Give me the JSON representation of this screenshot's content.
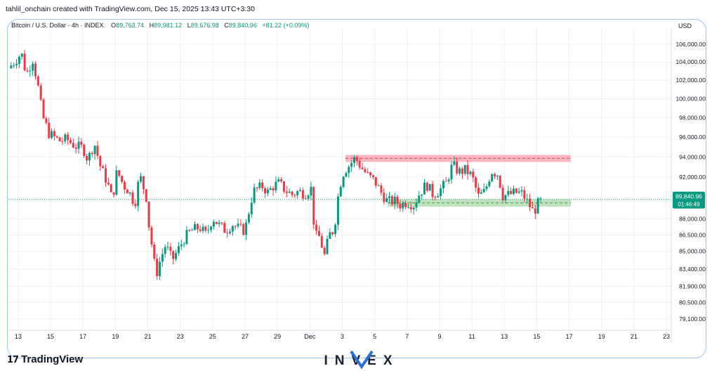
{
  "header": {
    "credit": "tahlil_onchain created with TradingView.com, Dec 15, 2025 13:43 UTC+3:30"
  },
  "legend": {
    "symbol": "Bitcoin / U.S. Dollar · 4h · INDEX",
    "open_label": "O",
    "open": "89,763.74",
    "high_label": "H",
    "high": "89,981.12",
    "low_label": "L",
    "low": "89,676.98",
    "close_label": "C",
    "close": "89,840.96",
    "change": "+81.22 (+0.09%)"
  },
  "price_axis": {
    "unit": "USD"
  },
  "current_price": {
    "value": "89,840.96",
    "countdown": "01:46:49"
  },
  "footer": {
    "logo_text": "TradingView",
    "brand": "INVEX"
  },
  "colors": {
    "up": "#089981",
    "down": "#f23645",
    "resistance": "#f7a9b4",
    "support": "#b7deb4",
    "frame": "#9ec6ea",
    "axis_text": "#131722"
  },
  "chart_data": {
    "type": "candlestick",
    "title": "Bitcoin / U.S. Dollar · 4h · INDEX",
    "ylabel": "USD",
    "scale": "logarithmic",
    "ylim": [
      78500,
      107500
    ],
    "grid": true,
    "y_ticks": [
      {
        "value": 106000,
        "label": "106,000.00"
      },
      {
        "value": 104000,
        "label": "104,000.00"
      },
      {
        "value": 102000,
        "label": "102,000.00"
      },
      {
        "value": 100000,
        "label": "100,000.00"
      },
      {
        "value": 98000,
        "label": "98,000.00"
      },
      {
        "value": 96000,
        "label": "96,000.00"
      },
      {
        "value": 94000,
        "label": "94,000.00"
      },
      {
        "value": 92000,
        "label": "92,000.00"
      },
      {
        "value": 88000,
        "label": "88,000.00"
      },
      {
        "value": 86500,
        "label": "86,500.00"
      },
      {
        "value": 85000,
        "label": "85,000.00"
      },
      {
        "value": 83400,
        "label": "83,400.00"
      },
      {
        "value": 81900,
        "label": "81,900.00"
      },
      {
        "value": 80500,
        "label": "80,500.00"
      },
      {
        "value": 79100,
        "label": "79,100.00"
      }
    ],
    "x_ticks": [
      {
        "day": 13,
        "label": "13"
      },
      {
        "day": 15,
        "label": "15"
      },
      {
        "day": 17,
        "label": "17"
      },
      {
        "day": 19,
        "label": "19"
      },
      {
        "day": 21,
        "label": "21"
      },
      {
        "day": 23,
        "label": "23"
      },
      {
        "day": 25,
        "label": "25"
      },
      {
        "day": 27,
        "label": "27"
      },
      {
        "day": 29,
        "label": "29"
      },
      {
        "day": 31,
        "label": "Dec"
      },
      {
        "day": 33,
        "label": "3"
      },
      {
        "day": 35,
        "label": "5"
      },
      {
        "day": 37,
        "label": "7"
      },
      {
        "day": 39,
        "label": "9"
      },
      {
        "day": 41,
        "label": "11"
      },
      {
        "day": 43,
        "label": "13"
      },
      {
        "day": 45,
        "label": "15"
      },
      {
        "day": 47,
        "label": "17"
      },
      {
        "day": 49,
        "label": "19"
      },
      {
        "day": 51,
        "label": "21"
      },
      {
        "day": 53,
        "label": "23"
      }
    ],
    "x_domain": [
      12.4,
      53.3
    ],
    "last_price": 89840.96,
    "zones": [
      {
        "name": "resistance",
        "from_day": 33.2,
        "to_day": 47.1,
        "low": 93500,
        "high": 94200,
        "mid": 93850
      },
      {
        "name": "support",
        "from_day": 35.8,
        "to_day": 47.1,
        "low": 89150,
        "high": 89850,
        "mid": 89500
      }
    ],
    "close_path": [
      [
        12.4,
        103300
      ],
      [
        12.8,
        104100
      ],
      [
        13.2,
        105000
      ],
      [
        13.5,
        102600
      ],
      [
        13.9,
        104300
      ],
      [
        14.2,
        101600
      ],
      [
        14.5,
        98200
      ],
      [
        14.9,
        96400
      ],
      [
        15.2,
        96000
      ],
      [
        15.6,
        95600
      ],
      [
        16.0,
        95800
      ],
      [
        16.5,
        95100
      ],
      [
        17.0,
        94900
      ],
      [
        17.3,
        93700
      ],
      [
        17.7,
        95400
      ],
      [
        18.1,
        92900
      ],
      [
        18.5,
        91500
      ],
      [
        18.8,
        89800
      ],
      [
        19.1,
        92600
      ],
      [
        19.5,
        91200
      ],
      [
        19.8,
        90700
      ],
      [
        20.2,
        89400
      ],
      [
        20.5,
        92200
      ],
      [
        20.9,
        90100
      ],
      [
        21.1,
        86900
      ],
      [
        21.3,
        85100
      ],
      [
        21.5,
        82800
      ],
      [
        21.8,
        84400
      ],
      [
        22.1,
        85600
      ],
      [
        22.5,
        84200
      ],
      [
        22.9,
        85200
      ],
      [
        23.3,
        86300
      ],
      [
        23.7,
        86900
      ],
      [
        24.2,
        87200
      ],
      [
        24.6,
        86500
      ],
      [
        25.0,
        88100
      ],
      [
        25.4,
        87400
      ],
      [
        25.8,
        86900
      ],
      [
        26.2,
        87500
      ],
      [
        26.6,
        87100
      ],
      [
        27.0,
        86900
      ],
      [
        27.2,
        88400
      ],
      [
        27.5,
        90600
      ],
      [
        27.8,
        90900
      ],
      [
        28.1,
        91100
      ],
      [
        28.4,
        90500
      ],
      [
        28.8,
        91200
      ],
      [
        29.1,
        91400
      ],
      [
        29.5,
        90700
      ],
      [
        29.9,
        90300
      ],
      [
        30.3,
        90600
      ],
      [
        30.7,
        90400
      ],
      [
        31.1,
        90900
      ],
      [
        31.3,
        86400
      ],
      [
        31.6,
        86300
      ],
      [
        31.9,
        84600
      ],
      [
        32.2,
        86500
      ],
      [
        32.5,
        87000
      ],
      [
        32.8,
        90900
      ],
      [
        33.1,
        92600
      ],
      [
        33.4,
        93100
      ],
      [
        33.8,
        93900
      ],
      [
        34.2,
        92900
      ],
      [
        34.6,
        92100
      ],
      [
        35.0,
        91600
      ],
      [
        35.4,
        90500
      ],
      [
        35.8,
        89600
      ],
      [
        36.2,
        89700
      ],
      [
        36.6,
        89300
      ],
      [
        37.0,
        89600
      ],
      [
        37.4,
        89300
      ],
      [
        37.8,
        90500
      ],
      [
        38.2,
        91300
      ],
      [
        38.6,
        90300
      ],
      [
        39.0,
        90700
      ],
      [
        39.4,
        91400
      ],
      [
        39.8,
        93200
      ],
      [
        40.2,
        92500
      ],
      [
        40.6,
        92700
      ],
      [
        41.0,
        92100
      ],
      [
        41.4,
        90100
      ],
      [
        41.8,
        90600
      ],
      [
        42.2,
        92600
      ],
      [
        42.6,
        92300
      ],
      [
        42.9,
        90200
      ],
      [
        43.3,
        90300
      ],
      [
        43.7,
        90500
      ],
      [
        44.1,
        90400
      ],
      [
        44.5,
        89400
      ],
      [
        44.8,
        88600
      ],
      [
        45.1,
        89500
      ],
      [
        45.4,
        89800
      ]
    ]
  }
}
